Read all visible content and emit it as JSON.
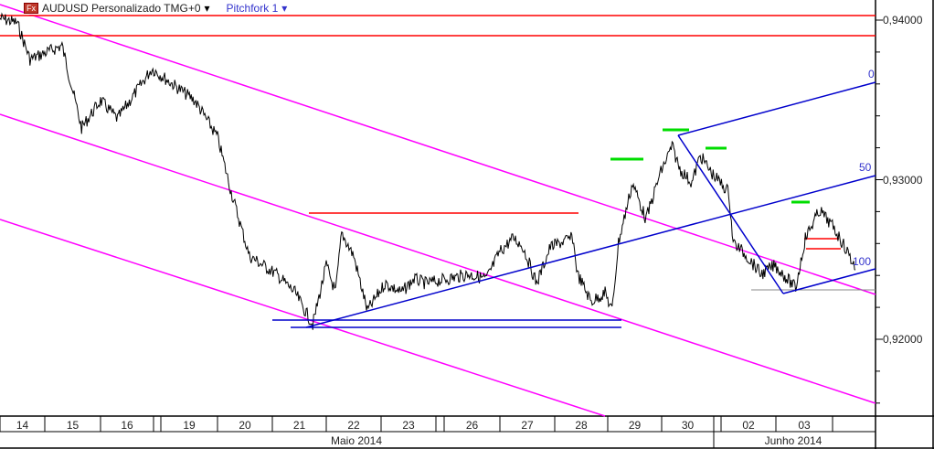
{
  "header": {
    "symbol": "AUDUSD Personalizado TMG+0",
    "symbol_icon": "fx-icon",
    "dropdown_icon": "▾",
    "tool": "Pitchfork 1"
  },
  "chart_data": {
    "type": "line",
    "y_ticks": [
      "0,94000",
      "0,93000",
      "0,92000"
    ],
    "ylim": [
      0.9155,
      0.9413
    ],
    "x_ticks": [
      "14",
      "15",
      "16",
      "19",
      "20",
      "21",
      "22",
      "23",
      "26",
      "27",
      "28",
      "29",
      "30",
      "02",
      "03"
    ],
    "months": [
      "Maio 2014",
      "Junho 2014"
    ],
    "pitchfork_levels": [
      "0",
      "50",
      "100"
    ],
    "colors": {
      "price": "#000000",
      "channel": "#ff00ff",
      "resistance": "#ff0000",
      "pitchfork": "#0000cc",
      "highs": "#00dd00"
    },
    "series": [
      {
        "points": [
          [
            0,
            0.94011
          ],
          [
            0.38,
            0.93983
          ],
          [
            0.67,
            0.93754
          ],
          [
            1.31,
            0.9384
          ],
          [
            1.66,
            0.93324
          ],
          [
            2.0,
            0.93496
          ],
          [
            2.32,
            0.93381
          ],
          [
            2.97,
            0.93696
          ],
          [
            3.6,
            0.93496
          ],
          [
            4.0,
            0.93267
          ],
          [
            4.25,
            0.92923
          ],
          [
            4.58,
            0.92522
          ],
          [
            5.08,
            0.92407
          ],
          [
            5.42,
            0.92292
          ],
          [
            5.75,
            0.92092
          ],
          [
            6.0,
            0.92464
          ],
          [
            6.17,
            0.92292
          ],
          [
            6.28,
            0.92665
          ],
          [
            6.5,
            0.92522
          ],
          [
            6.75,
            0.92178
          ],
          [
            7.07,
            0.9235
          ],
          [
            7.37,
            0.92292
          ],
          [
            7.6,
            0.92378
          ],
          [
            7.82,
            0.9235
          ],
          [
            8.44,
            0.92407
          ],
          [
            8.76,
            0.92378
          ],
          [
            9.0,
            0.9255
          ],
          [
            9.25,
            0.92636
          ],
          [
            9.42,
            0.92579
          ],
          [
            9.67,
            0.9235
          ],
          [
            9.92,
            0.92579
          ],
          [
            10.34,
            0.92636
          ],
          [
            10.43,
            0.92407
          ],
          [
            10.69,
            0.92235
          ],
          [
            10.95,
            0.92292
          ],
          [
            11.08,
            0.92178
          ],
          [
            11.2,
            0.92608
          ],
          [
            11.46,
            0.9298
          ],
          [
            11.71,
            0.92751
          ],
          [
            11.97,
            0.93037
          ],
          [
            12.2,
            0.93209
          ],
          [
            12.35,
            0.93066
          ],
          [
            12.58,
            0.9298
          ],
          [
            12.74,
            0.93152
          ],
          [
            12.97,
            0.93037
          ],
          [
            13.14,
            0.92923
          ],
          [
            13.22,
            0.92608
          ],
          [
            13.47,
            0.92522
          ],
          [
            13.73,
            0.92407
          ],
          [
            13.98,
            0.92464
          ],
          [
            14.35,
            0.92321
          ],
          [
            14.52,
            0.92636
          ],
          [
            14.77,
            0.92808
          ],
          [
            15.03,
            0.92694
          ],
          [
            15.26,
            0.9255
          ],
          [
            15.42,
            0.92436
          ]
        ]
      }
    ]
  }
}
